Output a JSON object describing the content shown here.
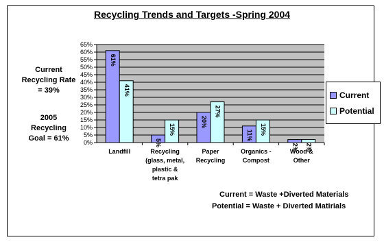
{
  "chart_data": {
    "type": "bar",
    "title": "Recycling Trends and Targets -Spring 2004",
    "categories": [
      [
        "Landfill"
      ],
      [
        "Recycling",
        "(glass, metal,",
        "plastic &",
        "tetra pak"
      ],
      [
        "Paper",
        "Recycling"
      ],
      [
        "Organics -",
        "Compost"
      ],
      [
        "Wood &",
        "Other"
      ]
    ],
    "series": [
      {
        "name": "Current",
        "values": [
          61,
          5,
          20,
          11,
          2
        ],
        "labels": [
          "61%",
          "5%",
          "20%",
          "11%",
          "2%"
        ]
      },
      {
        "name": "Potential",
        "values": [
          41,
          15,
          27,
          15,
          2
        ],
        "labels": [
          "41%",
          "15%",
          "27%",
          "15%",
          "2%"
        ]
      }
    ],
    "ylim": [
      0,
      65
    ],
    "yticks": [
      "0%",
      "5%",
      "10%",
      "15%",
      "20%",
      "25%",
      "30%",
      "35%",
      "40%",
      "45%",
      "50%",
      "55%",
      "60%",
      "65%"
    ],
    "grid": true,
    "legend_position": "right"
  },
  "colors": {
    "current": "#9999ff",
    "potential": "#ccffff",
    "plot_bg": "#c0c0c0",
    "gridline": "#000000"
  },
  "side_notes": {
    "rate_lines": [
      "Current",
      "Recycling Rate",
      "= 39%"
    ],
    "goal_lines": [
      "2005",
      "Recycling",
      "Goal = 61%"
    ]
  },
  "footnotes": {
    "current": "Current =  Waste +Diverted Materials",
    "potential": "Potential =  Waste + Diverted Matirials"
  }
}
